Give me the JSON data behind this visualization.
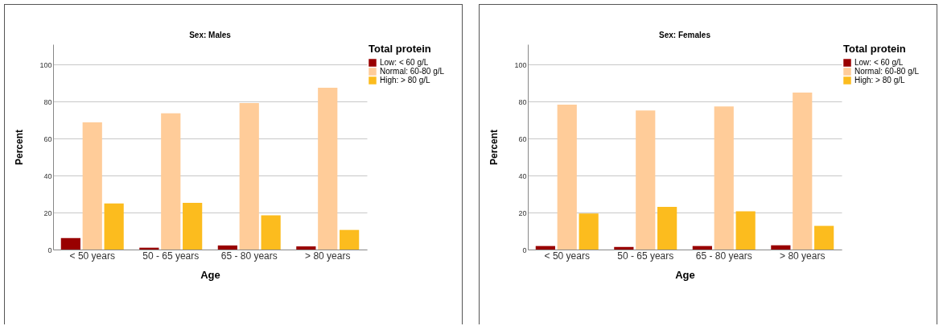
{
  "chart_data": [
    {
      "type": "bar",
      "title": "Sex: Males",
      "xlabel": "Age",
      "ylabel": "Percent",
      "legend_title": "Total protein",
      "categories": [
        "< 50 years",
        "50 - 65 years",
        "65 - 80 years",
        "> 80 years"
      ],
      "series": [
        {
          "name": "Low: < 60 g/L",
          "color": "#990000",
          "values": [
            6.2,
            1.0,
            2.2,
            1.7
          ]
        },
        {
          "name": "Normal: 60-80 g/L",
          "color": "#ffcc99",
          "values": [
            68.8,
            73.7,
            79.2,
            87.5
          ]
        },
        {
          "name": "High: > 80 g/L",
          "color": "#fcbc1e",
          "values": [
            24.9,
            25.3,
            18.5,
            10.6
          ]
        }
      ],
      "ylim": [
        0,
        111
      ],
      "yticks": [
        0,
        20,
        40,
        60,
        80,
        100
      ],
      "grid": "y",
      "legend": "top right"
    },
    {
      "type": "bar",
      "title": "Sex: Females",
      "xlabel": "Age",
      "ylabel": "Percent",
      "legend_title": "Total protein",
      "categories": [
        "< 50 years",
        "50 - 65 years",
        "65 - 80 years",
        "> 80 years"
      ],
      "series": [
        {
          "name": "Low: < 60 g/L",
          "color": "#990000",
          "values": [
            1.9,
            1.4,
            1.9,
            2.3
          ]
        },
        {
          "name": "Normal: 60-80 g/L",
          "color": "#ffcc99",
          "values": [
            78.3,
            75.2,
            77.4,
            84.9
          ]
        },
        {
          "name": "High: > 80 g/L",
          "color": "#fcbc1e",
          "values": [
            19.5,
            23.1,
            20.7,
            12.8
          ]
        }
      ],
      "ylim": [
        0,
        111
      ],
      "yticks": [
        0,
        20,
        40,
        60,
        80,
        100
      ],
      "grid": "y",
      "legend": "top right"
    }
  ]
}
